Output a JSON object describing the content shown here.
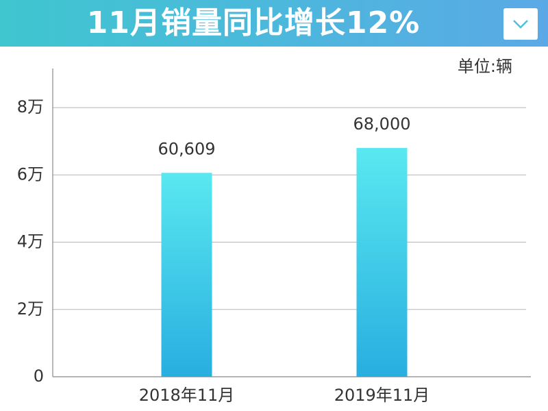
{
  "chart_data": {
    "type": "bar",
    "title": "11月销量同比增长12%",
    "unit_label": "单位:辆",
    "categories": [
      "2018年11月",
      "2019年11月"
    ],
    "values": [
      60609,
      68000
    ],
    "value_labels": [
      "60,609",
      "68,000"
    ],
    "gradient": [
      "#5ae8f0",
      "#28aee0"
    ],
    "ylim": [
      0,
      90000
    ],
    "yticks": [
      0,
      {
        "value": 20000,
        "label": "2万"
      },
      {
        "value": 40000,
        "label": "4万"
      },
      {
        "value": 60000,
        "label": "6万"
      },
      {
        "value": 80000,
        "label": "8万"
      }
    ],
    "grid": true
  }
}
